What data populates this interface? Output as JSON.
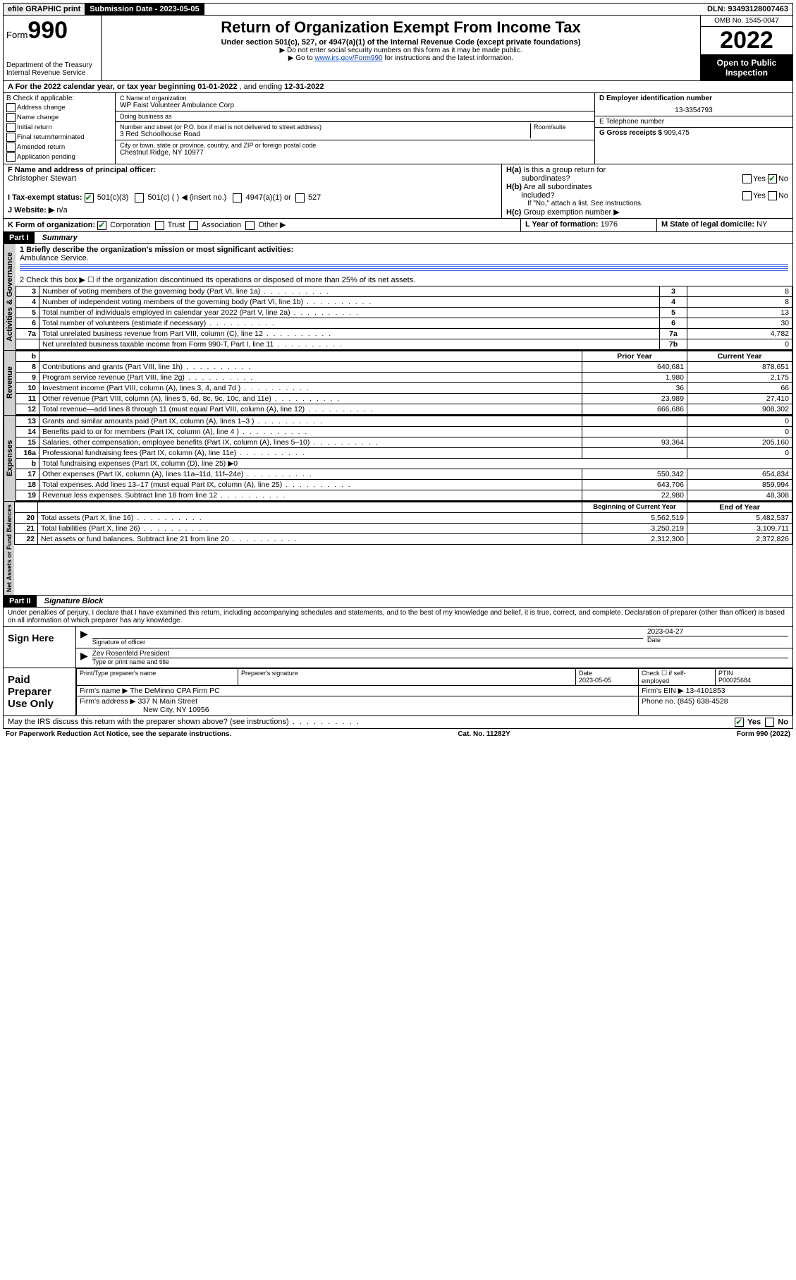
{
  "topbar": {
    "efile": "efile GRAPHIC print",
    "submission_label": "Submission Date - ",
    "submission_date": "2023-05-05",
    "dln_label": "DLN: ",
    "dln": "93493128007463"
  },
  "header": {
    "form_prefix": "Form",
    "form_number": "990",
    "dept": "Department of the Treasury",
    "irs": "Internal Revenue Service",
    "title": "Return of Organization Exempt From Income Tax",
    "subtitle": "Under section 501(c), 527, or 4947(a)(1) of the Internal Revenue Code (except private foundations)",
    "note1": "▶ Do not enter social security numbers on this form as it may be made public.",
    "note2_pre": "▶ Go to ",
    "note2_link": "www.irs.gov/Form990",
    "note2_post": " for instructions and the latest information.",
    "omb": "OMB No. 1545-0047",
    "year": "2022",
    "inspect": "Open to Public Inspection"
  },
  "sectionA": {
    "text_pre": "A For the 2022 calendar year, or tax year beginning ",
    "begin": "01-01-2022",
    "mid": " , and ending ",
    "end": "12-31-2022"
  },
  "colB": {
    "header": "B Check if applicable:",
    "items": [
      "Address change",
      "Name change",
      "Initial return",
      "Final return/terminated",
      "Amended return",
      "Application pending"
    ]
  },
  "colC": {
    "name_label": "C Name of organization",
    "name": "WP Faist Volunteer Ambulance Corp",
    "dba_label": "Doing business as",
    "dba": "",
    "street_label": "Number and street (or P.O. box if mail is not delivered to street address)",
    "room_label": "Room/suite",
    "street": "3 Red Schoolhouse Road",
    "city_label": "City or town, state or province, country, and ZIP or foreign postal code",
    "city": "Chestnut Ridge, NY  10977"
  },
  "colDE": {
    "d_label": "D Employer identification number",
    "d_value": "13-3354793",
    "e_label": "E Telephone number",
    "e_value": "",
    "g_label": "G Gross receipts $ ",
    "g_value": "909,475"
  },
  "rowF": {
    "f_label": "F Name and address of principal officer:",
    "f_value": "Christopher Stewart",
    "ha_label": "H(a) Is this a group return for subordinates?",
    "hb_label": "H(b) Are all subordinates included?",
    "hb_note": "If \"No,\" attach a list. See instructions.",
    "hc_label": "H(c) Group exemption number ▶",
    "yes": "Yes",
    "no": "No"
  },
  "rowI": {
    "label": "I    Tax-exempt status:",
    "opt1": "501(c)(3)",
    "opt2": "501(c) (  ) ◀ (insert no.)",
    "opt3": "4947(a)(1) or",
    "opt4": "527"
  },
  "rowJ": {
    "label": "J   Website: ▶",
    "value": "n/a"
  },
  "rowK": {
    "label": "K Form of organization:",
    "opts": [
      "Corporation",
      "Trust",
      "Association",
      "Other ▶"
    ],
    "l_label": "L Year of formation: ",
    "l_value": "1976",
    "m_label": "M State of legal domicile: ",
    "m_value": "NY"
  },
  "part1": {
    "header": "Part I",
    "title": "Summary",
    "line1_label": "1  Briefly describe the organization's mission or most significant activities:",
    "line1_value": "Ambulance Service.",
    "line2": "2   Check this box ▶ ☐  if the organization discontinued its operations or disposed of more than 25% of its net assets.",
    "vert1": "Activities & Governance",
    "vert2": "Revenue",
    "vert3": "Expenses",
    "vert4": "Net Assets or Fund Balances"
  },
  "govRows": [
    {
      "n": "3",
      "label": "Number of voting members of the governing body (Part VI, line 1a)",
      "k": "3",
      "v": "8"
    },
    {
      "n": "4",
      "label": "Number of independent voting members of the governing body (Part VI, line 1b)",
      "k": "4",
      "v": "8"
    },
    {
      "n": "5",
      "label": "Total number of individuals employed in calendar year 2022 (Part V, line 2a)",
      "k": "5",
      "v": "13"
    },
    {
      "n": "6",
      "label": "Total number of volunteers (estimate if necessary)",
      "k": "6",
      "v": "30"
    },
    {
      "n": "7a",
      "label": "Total unrelated business revenue from Part VIII, column (C), line 12",
      "k": "7a",
      "v": "4,782"
    },
    {
      "n": "",
      "label": "Net unrelated business taxable income from Form 990-T, Part I, line 11",
      "k": "7b",
      "v": "0"
    }
  ],
  "yearHeader": {
    "b": "b",
    "prior": "Prior Year",
    "current": "Current Year"
  },
  "revRows": [
    {
      "n": "8",
      "label": "Contributions and grants (Part VIII, line 1h)",
      "p": "640,681",
      "c": "878,651"
    },
    {
      "n": "9",
      "label": "Program service revenue (Part VIII, line 2g)",
      "p": "1,980",
      "c": "2,175"
    },
    {
      "n": "10",
      "label": "Investment income (Part VIII, column (A), lines 3, 4, and 7d )",
      "p": "36",
      "c": "66"
    },
    {
      "n": "11",
      "label": "Other revenue (Part VIII, column (A), lines 5, 6d, 8c, 9c, 10c, and 11e)",
      "p": "23,989",
      "c": "27,410"
    },
    {
      "n": "12",
      "label": "Total revenue—add lines 8 through 11 (must equal Part VIII, column (A), line 12)",
      "p": "666,686",
      "c": "908,302"
    }
  ],
  "expRows": [
    {
      "n": "13",
      "label": "Grants and similar amounts paid (Part IX, column (A), lines 1–3 )",
      "p": "",
      "c": "0"
    },
    {
      "n": "14",
      "label": "Benefits paid to or for members (Part IX, column (A), line 4 )",
      "p": "",
      "c": "0"
    },
    {
      "n": "15",
      "label": "Salaries, other compensation, employee benefits (Part IX, column (A), lines 5–10)",
      "p": "93,364",
      "c": "205,160"
    },
    {
      "n": "16a",
      "label": "Professional fundraising fees (Part IX, column (A), line 11e)",
      "p": "",
      "c": "0"
    },
    {
      "n": "b",
      "label": "Total fundraising expenses (Part IX, column (D), line 25) ▶0",
      "p": "—",
      "c": "—"
    },
    {
      "n": "17",
      "label": "Other expenses (Part IX, column (A), lines 11a–11d, 11f–24e)",
      "p": "550,342",
      "c": "654,834"
    },
    {
      "n": "18",
      "label": "Total expenses. Add lines 13–17 (must equal Part IX, column (A), line 25)",
      "p": "643,706",
      "c": "859,994"
    },
    {
      "n": "19",
      "label": "Revenue less expenses. Subtract line 18 from line 12",
      "p": "22,980",
      "c": "48,308"
    }
  ],
  "netHeader": {
    "b": "Beginning of Current Year",
    "e": "End of Year"
  },
  "netRows": [
    {
      "n": "20",
      "label": "Total assets (Part X, line 16)",
      "p": "5,562,519",
      "c": "5,482,537"
    },
    {
      "n": "21",
      "label": "Total liabilities (Part X, line 26)",
      "p": "3,250,219",
      "c": "3,109,711"
    },
    {
      "n": "22",
      "label": "Net assets or fund balances. Subtract line 21 from line 20",
      "p": "2,312,300",
      "c": "2,372,826"
    }
  ],
  "part2": {
    "header": "Part II",
    "title": "Signature Block",
    "declaration": "Under penalties of perjury, I declare that I have examined this return, including accompanying schedules and statements, and to the best of my knowledge and belief, it is true, correct, and complete. Declaration of preparer (other than officer) is based on all information of which preparer has any knowledge."
  },
  "sign": {
    "here": "Sign Here",
    "sig_label": "Signature of officer",
    "date_label": "Date",
    "date_value": "2023-04-27",
    "name_value": "Zev Rosenfeld  President",
    "name_label": "Type or print name and title"
  },
  "preparer": {
    "title": "Paid Preparer Use Only",
    "name_label": "Print/Type preparer's name",
    "sig_label": "Preparer's signature",
    "date_label": "Date",
    "date_value": "2023-05-05",
    "check_label": "Check ☐ if self-employed",
    "ptin_label": "PTIN",
    "ptin_value": "P00025684",
    "firm_name_label": "Firm's name    ▶ ",
    "firm_name": "The DeMinno CPA Firm PC",
    "firm_ein_label": "Firm's EIN ▶ ",
    "firm_ein": "13-4101853",
    "firm_addr_label": "Firm's address ▶ ",
    "firm_addr1": "337 N Main Street",
    "firm_addr2": "New City, NY  10956",
    "phone_label": "Phone no. ",
    "phone": "(845) 638-4528"
  },
  "footer": {
    "discuss": "May the IRS discuss this return with the preparer shown above? (see instructions)",
    "yes": "Yes",
    "no": "No",
    "paperwork": "For Paperwork Reduction Act Notice, see the separate instructions.",
    "cat": "Cat. No. 11282Y",
    "form": "Form 990 (2022)"
  }
}
